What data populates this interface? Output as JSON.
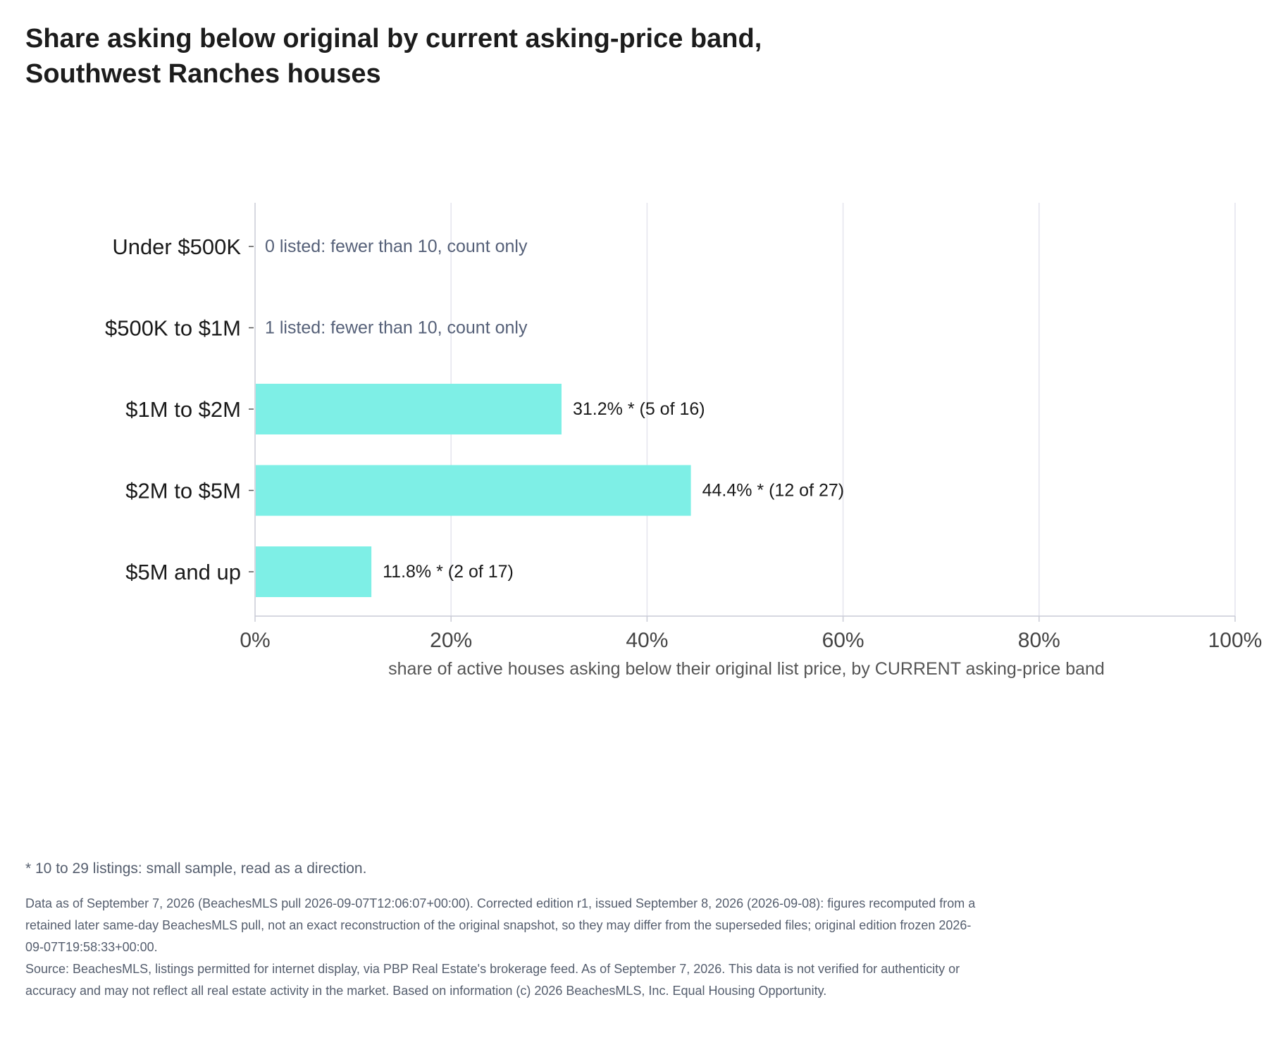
{
  "title_lines": [
    "Share asking below original by current asking-price band,",
    "Southwest Ranches houses"
  ],
  "colors": {
    "bar": "#7EEFE6",
    "grid": "#E4E4EE",
    "axis": "#C9CBD6",
    "muted_text": "#556078"
  },
  "chart_data": {
    "type": "bar",
    "orientation": "horizontal",
    "categories": [
      "Under $500K",
      "$500K to $1M",
      "$1M to $2M",
      "$2M to $5M",
      "$5M and up"
    ],
    "values": [
      null,
      null,
      31.2,
      44.4,
      11.8
    ],
    "bar_labels": [
      "0 listed: fewer than 10, count only",
      "1 listed: fewer than 10, count only",
      "31.2% *  (5 of 16)",
      "44.4% *  (12 of 27)",
      "11.8% *  (2 of 17)"
    ],
    "xlabel": "share of active houses asking below their original list price, by CURRENT asking-price band",
    "xlim": [
      0,
      100
    ],
    "xticks": [
      "0%",
      "20%",
      "40%",
      "60%",
      "80%",
      "100%"
    ],
    "grid": "vertical"
  },
  "footnote": "* 10 to 29 listings: small sample, read as a direction.",
  "notes": [
    "Data as of September 7, 2026 (BeachesMLS pull 2026-09-07T12:06:07+00:00). Corrected edition r1, issued September 8, 2026 (2026-09-08): figures recomputed from a retained later same-day BeachesMLS pull, not an exact reconstruction of the original snapshot, so they may differ from the superseded files; original edition frozen 2026-09-07T19:58:33+00:00.",
    "Source: BeachesMLS, listings permitted for internet display, via PBP Real Estate's brokerage feed. As of September 7, 2026. This data is not verified for authenticity or accuracy and may not reflect all real estate activity in the market. Based on information (c) 2026 BeachesMLS, Inc. Equal Housing Opportunity."
  ]
}
